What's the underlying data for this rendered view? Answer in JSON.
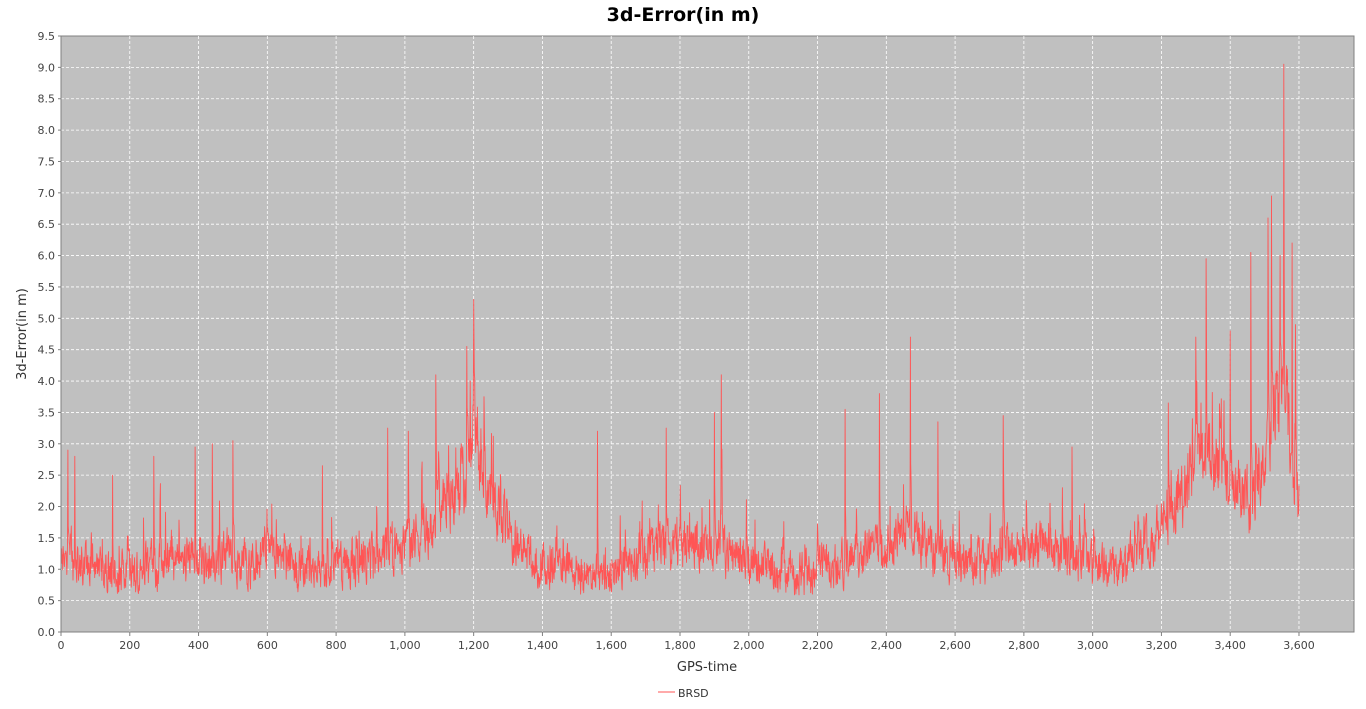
{
  "chart_data": {
    "type": "line",
    "title": "3d-Error(in m)",
    "xlabel": "GPS-time",
    "ylabel": "3d-Error(in m)",
    "xlim": [
      0,
      3760
    ],
    "ylim": [
      0,
      9.5
    ],
    "x_ticks": [
      "0",
      "200",
      "400",
      "600",
      "800",
      "1,000",
      "1,200",
      "1,400",
      "1,600",
      "1,800",
      "2,000",
      "2,200",
      "2,400",
      "2,600",
      "2,800",
      "3,000",
      "3,200",
      "3,400",
      "3,600"
    ],
    "y_ticks": [
      "0.0",
      "0.5",
      "1.0",
      "1.5",
      "2.0",
      "2.5",
      "3.0",
      "3.5",
      "4.0",
      "4.5",
      "5.0",
      "5.5",
      "6.0",
      "6.5",
      "7.0",
      "7.5",
      "8.0",
      "8.5",
      "9.0",
      "9.5"
    ],
    "grid": true,
    "legend_position": "bottom",
    "colors": {
      "plot_bg": "#c0c0c0",
      "grid": "#ffffff",
      "series": "#ff5555"
    },
    "series": [
      {
        "name": "BRSD",
        "x": [
          0,
          60,
          120,
          180,
          240,
          300,
          360,
          420,
          480,
          540,
          600,
          660,
          720,
          780,
          840,
          900,
          960,
          1020,
          1080,
          1100,
          1140,
          1180,
          1200,
          1220,
          1260,
          1320,
          1380,
          1440,
          1500,
          1560,
          1620,
          1680,
          1740,
          1800,
          1860,
          1920,
          1980,
          2040,
          2100,
          2160,
          2220,
          2280,
          2340,
          2400,
          2460,
          2520,
          2580,
          2640,
          2700,
          2760,
          2820,
          2880,
          2940,
          3000,
          3060,
          3120,
          3180,
          3240,
          3300,
          3340,
          3380,
          3420,
          3460,
          3500,
          3520,
          3540,
          3555,
          3570,
          3580,
          3600
        ],
        "values": [
          1.2,
          1.1,
          1.0,
          0.9,
          1.0,
          1.1,
          1.2,
          1.1,
          1.2,
          1.0,
          1.2,
          1.1,
          1.0,
          1.1,
          1.0,
          1.2,
          1.3,
          1.4,
          1.6,
          2.0,
          2.1,
          2.6,
          3.3,
          2.6,
          2.0,
          1.4,
          1.1,
          1.0,
          1.0,
          0.9,
          1.0,
          1.2,
          1.3,
          1.3,
          1.4,
          1.3,
          1.2,
          1.1,
          1.0,
          0.9,
          1.0,
          1.1,
          1.3,
          1.4,
          1.6,
          1.3,
          1.2,
          1.1,
          1.2,
          1.3,
          1.4,
          1.3,
          1.2,
          1.1,
          1.0,
          1.2,
          1.5,
          2.0,
          2.6,
          2.9,
          2.6,
          2.4,
          2.0,
          2.6,
          3.2,
          3.6,
          4.0,
          3.3,
          2.6,
          2.0
        ],
        "spikes": [
          [
            20,
            2.9
          ],
          [
            40,
            2.8
          ],
          [
            150,
            2.5
          ],
          [
            270,
            2.8
          ],
          [
            390,
            2.95
          ],
          [
            440,
            3.0
          ],
          [
            500,
            3.05
          ],
          [
            760,
            2.65
          ],
          [
            950,
            3.25
          ],
          [
            1010,
            3.2
          ],
          [
            1090,
            4.1
          ],
          [
            1180,
            4.55
          ],
          [
            1190,
            4.0
          ],
          [
            1200,
            5.3
          ],
          [
            1230,
            3.75
          ],
          [
            1560,
            3.2
          ],
          [
            1760,
            3.25
          ],
          [
            1900,
            3.5
          ],
          [
            1920,
            4.1
          ],
          [
            2280,
            3.55
          ],
          [
            2380,
            3.8
          ],
          [
            2470,
            4.7
          ],
          [
            2550,
            3.35
          ],
          [
            2740,
            3.45
          ],
          [
            2940,
            2.95
          ],
          [
            3220,
            3.65
          ],
          [
            3300,
            4.7
          ],
          [
            3330,
            5.95
          ],
          [
            3400,
            4.8
          ],
          [
            3460,
            6.05
          ],
          [
            3510,
            6.6
          ],
          [
            3520,
            6.95
          ],
          [
            3545,
            6.0
          ],
          [
            3556,
            9.05
          ],
          [
            3580,
            6.2
          ],
          [
            3590,
            4.9
          ]
        ]
      }
    ]
  }
}
